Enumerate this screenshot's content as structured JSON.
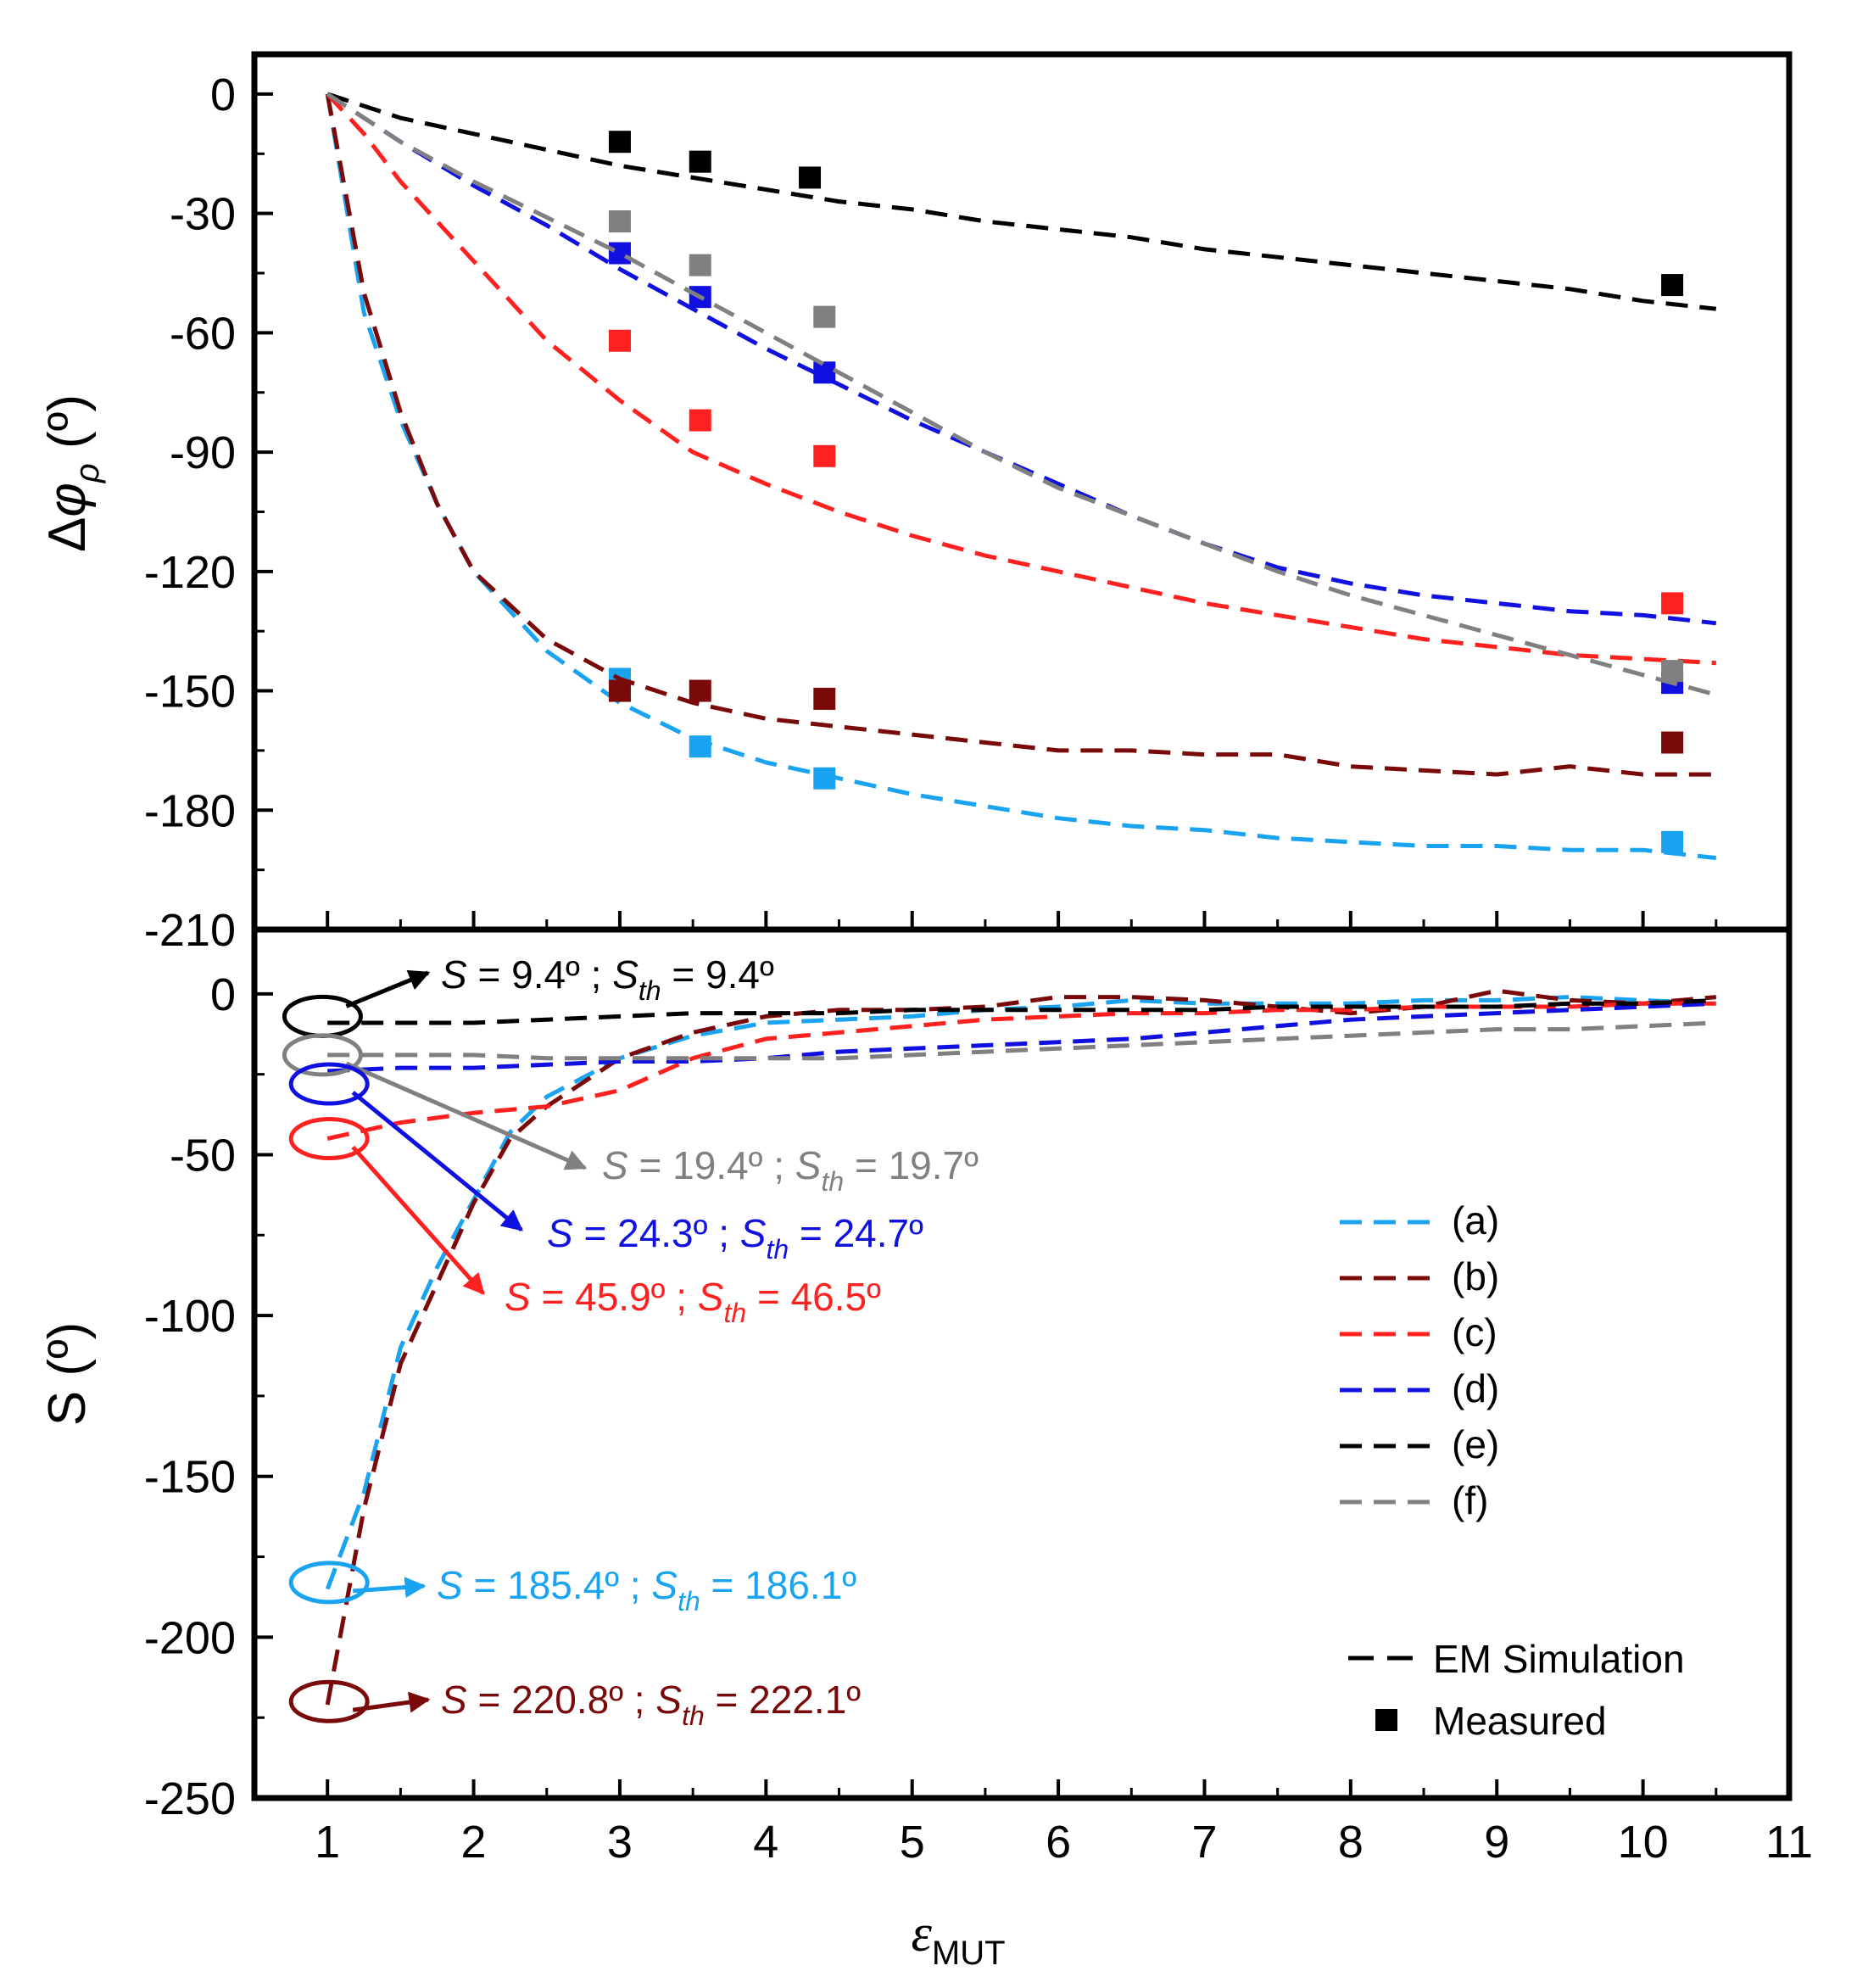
{
  "chart_data": [
    {
      "type": "line",
      "panel": "top",
      "ylabel": "Δφρ (º)",
      "ylabel_parts": {
        "delta": "Δ",
        "phi": "φ",
        "sub": "ρ",
        "unit": " (º)"
      },
      "ylim": [
        -210,
        10
      ],
      "yticks": [
        "0",
        "-30",
        "-60",
        "-90",
        "-120",
        "-150",
        "-180",
        "-210"
      ],
      "ytick_values": [
        0,
        -30,
        -60,
        -90,
        -120,
        -150,
        -180,
        -210
      ],
      "xlim": [
        0.5,
        11
      ],
      "series": [
        {
          "key": "a",
          "color": "#1aa3f0",
          "sim_x": [
            1,
            1.25,
            1.5,
            1.75,
            2,
            2.5,
            3,
            3.5,
            4,
            4.5,
            5,
            5.5,
            6,
            6.5,
            7,
            7.5,
            8,
            8.5,
            9,
            9.5,
            10,
            10.5
          ],
          "sim_y": [
            0,
            -55,
            -82,
            -103,
            -120,
            -140,
            -153,
            -162,
            -168,
            -172,
            -176,
            -179,
            -182,
            -184,
            -185,
            -187,
            -188,
            -189,
            -189,
            -190,
            -190,
            -192
          ],
          "measured_x": [
            3,
            3.55,
            4.4,
            10.2
          ],
          "measured_y": [
            -147,
            -164,
            -172,
            -188
          ]
        },
        {
          "key": "b",
          "color": "#7a0a0a",
          "sim_x": [
            1,
            1.25,
            1.5,
            1.75,
            2,
            2.5,
            3,
            3.5,
            4,
            4.5,
            5,
            5.5,
            6,
            6.5,
            7,
            7.5,
            8,
            8.5,
            9,
            9.5,
            10,
            10.5
          ],
          "sim_y": [
            0,
            -50,
            -80,
            -103,
            -120,
            -137,
            -147,
            -153,
            -157,
            -159,
            -161,
            -163,
            -165,
            -165,
            -166,
            -166,
            -169,
            -170,
            -171,
            -169,
            -171,
            -171
          ],
          "measured_x": [
            3,
            3.55,
            4.4,
            10.2
          ],
          "measured_y": [
            -150,
            -150,
            -152,
            -163
          ]
        },
        {
          "key": "c",
          "color": "#ff2020",
          "sim_x": [
            1,
            1.25,
            1.5,
            2,
            2.5,
            3,
            3.5,
            4,
            4.5,
            5,
            5.5,
            6,
            6.5,
            7,
            7.5,
            8,
            8.5,
            9,
            9.5,
            10,
            10.5
          ],
          "sim_y": [
            0,
            -10,
            -22,
            -42,
            -62,
            -77,
            -90,
            -98,
            -105,
            -111,
            -116,
            -120,
            -124,
            -128,
            -131,
            -134,
            -137,
            -139,
            -141,
            -142,
            -143
          ],
          "measured_x": [
            3,
            3.55,
            4.4,
            10.2
          ],
          "measured_y": [
            -62,
            -82,
            -91,
            -128
          ]
        },
        {
          "key": "d",
          "color": "#1010e0",
          "sim_x": [
            1,
            1.5,
            2,
            2.5,
            3,
            3.5,
            4,
            4.5,
            5,
            5.5,
            6,
            6.5,
            7,
            7.5,
            8,
            8.5,
            9,
            9.5,
            10,
            10.5
          ],
          "sim_y": [
            0,
            -12,
            -23,
            -33,
            -44,
            -54,
            -64,
            -73,
            -82,
            -90,
            -98,
            -106,
            -113,
            -119,
            -123,
            -126,
            -128,
            -130,
            -131,
            -133
          ],
          "measured_x": [
            3,
            3.55,
            4.4,
            10.2
          ],
          "measured_y": [
            -40,
            -51,
            -70,
            -148
          ]
        },
        {
          "key": "e",
          "color": "#000000",
          "sim_x": [
            1,
            1.5,
            2,
            2.5,
            3,
            3.5,
            4,
            4.5,
            5,
            5.5,
            6,
            6.5,
            7,
            7.5,
            8,
            8.5,
            9,
            9.5,
            10,
            10.5
          ],
          "sim_y": [
            0,
            -6,
            -10,
            -14,
            -18,
            -21,
            -24,
            -27,
            -29,
            -32,
            -34,
            -36,
            -39,
            -41,
            -43,
            -45,
            -47,
            -49,
            -52,
            -54
          ],
          "measured_x": [
            3,
            3.55,
            4.3,
            10.2
          ],
          "measured_y": [
            -12,
            -17,
            -21,
            -48
          ]
        },
        {
          "key": "f",
          "color": "#808080",
          "sim_x": [
            1,
            1.5,
            2,
            2.5,
            3,
            3.5,
            4,
            4.5,
            5,
            5.5,
            6,
            6.5,
            7,
            7.5,
            8,
            8.5,
            9,
            9.5,
            10,
            10.5
          ],
          "sim_y": [
            0,
            -12,
            -22,
            -31,
            -40,
            -50,
            -60,
            -70,
            -80,
            -90,
            -99,
            -106,
            -113,
            -120,
            -126,
            -131,
            -136,
            -141,
            -146,
            -151
          ],
          "measured_x": [
            3,
            3.55,
            4.4,
            10.2
          ],
          "measured_y": [
            -32,
            -43,
            -56,
            -145
          ]
        }
      ]
    },
    {
      "type": "line",
      "panel": "bottom",
      "ylabel": "S (º)",
      "xlabel": "εMUT",
      "xlabel_parts": {
        "main": "ε",
        "sub": "MUT"
      },
      "ylim": [
        -250,
        20
      ],
      "yticks": [
        "0",
        "-50",
        "-100",
        "-150",
        "-200",
        "-250"
      ],
      "ytick_values": [
        0,
        -50,
        -100,
        -150,
        -200,
        -250
      ],
      "xlim": [
        0.5,
        11
      ],
      "xticks": [
        "1",
        "2",
        "3",
        "4",
        "5",
        "6",
        "7",
        "8",
        "9",
        "10",
        "11"
      ],
      "xtick_values": [
        1,
        2,
        3,
        4,
        5,
        6,
        7,
        8,
        9,
        10,
        11
      ],
      "series": [
        {
          "key": "a",
          "label": "(a)",
          "color": "#1aa3f0",
          "x": [
            1,
            1.25,
            1.5,
            1.75,
            2,
            2.25,
            2.5,
            3,
            3.5,
            4,
            4.5,
            5,
            5.5,
            6,
            6.5,
            7,
            7.5,
            8,
            8.5,
            9,
            9.5,
            10,
            10.5
          ],
          "y": [
            -185,
            -155,
            -110,
            -85,
            -64,
            -43,
            -32,
            -20,
            -13,
            -9,
            -8,
            -7,
            -5,
            -4,
            -2,
            -3,
            -3,
            -3,
            -2,
            -2,
            -1,
            -2,
            -3
          ]
        },
        {
          "key": "b",
          "label": "(b)",
          "color": "#7a0a0a",
          "x": [
            1,
            1.25,
            1.5,
            1.75,
            2,
            2.25,
            2.5,
            3,
            3.5,
            4,
            4.5,
            5,
            5.5,
            6,
            6.5,
            7,
            7.5,
            8,
            8.5,
            9,
            9.5,
            10,
            10.5
          ],
          "y": [
            -221,
            -160,
            -115,
            -90,
            -65,
            -45,
            -35,
            -20,
            -12,
            -7,
            -5,
            -5,
            -4,
            -1,
            -1,
            -2,
            -4,
            -6,
            -4,
            1,
            -2,
            -3,
            -1
          ]
        },
        {
          "key": "c",
          "label": "(c)",
          "color": "#ff2020",
          "x": [
            1,
            1.5,
            2,
            2.5,
            3,
            3.5,
            4,
            4.5,
            5,
            5.5,
            6,
            6.5,
            7,
            7.5,
            8,
            8.5,
            9,
            9.5,
            10,
            10.5
          ],
          "y": [
            -45,
            -40,
            -37,
            -35,
            -30,
            -20,
            -14,
            -12,
            -10,
            -8,
            -7,
            -6,
            -6,
            -5,
            -5,
            -4,
            -4,
            -4,
            -3,
            -3
          ]
        },
        {
          "key": "d",
          "label": "(d)",
          "color": "#1010e0",
          "x": [
            1,
            1.5,
            2,
            2.5,
            3,
            3.5,
            4,
            4.5,
            5,
            5.5,
            6,
            6.5,
            7,
            7.5,
            8,
            8.5,
            9,
            9.5,
            10,
            10.5
          ],
          "y": [
            -24,
            -23,
            -23,
            -22,
            -21,
            -21,
            -20,
            -18,
            -17,
            -16,
            -15,
            -14,
            -12,
            -10,
            -8,
            -7,
            -6,
            -5,
            -4,
            -3
          ]
        },
        {
          "key": "e",
          "label": "(e)",
          "color": "#000000",
          "x": [
            1,
            1.5,
            2,
            2.5,
            3,
            3.5,
            4,
            4.5,
            5,
            5.5,
            6,
            6.5,
            7,
            7.5,
            8,
            8.5,
            9,
            9.5,
            10,
            10.5
          ],
          "y": [
            -9,
            -9,
            -9,
            -8,
            -7,
            -6,
            -6,
            -6,
            -5,
            -5,
            -5,
            -5,
            -5,
            -4,
            -4,
            -4,
            -4,
            -3,
            -3,
            -2
          ]
        },
        {
          "key": "f",
          "label": "(f)",
          "color": "#808080",
          "x": [
            1,
            1.5,
            2,
            2.5,
            3,
            3.5,
            4,
            4.5,
            5,
            5.5,
            6,
            6.5,
            7,
            7.5,
            8,
            8.5,
            9,
            9.5,
            10,
            10.5
          ],
          "y": [
            -19,
            -19,
            -19,
            -20,
            -20,
            -20,
            -20,
            -20,
            -19,
            -18,
            -17,
            -16,
            -15,
            -14,
            -13,
            -12,
            -11,
            -11,
            -10,
            -9
          ]
        }
      ],
      "annotations": [
        {
          "key": "e",
          "color": "#000000",
          "x": 1.1,
          "y": -7,
          "S": "9.4º",
          "Sth": "9.4º"
        },
        {
          "key": "f",
          "color": "#808080",
          "x": 1.1,
          "y": -19,
          "S": "19.4º",
          "Sth": "19.7º"
        },
        {
          "key": "d",
          "color": "#1010e0",
          "x": 1.0,
          "y": -28,
          "S": "24.3º",
          "Sth": "24.7º"
        },
        {
          "key": "c",
          "color": "#ff2020",
          "x": 1.0,
          "y": -45,
          "S": "45.9º",
          "Sth": "46.5º"
        },
        {
          "key": "a",
          "color": "#1aa3f0",
          "x": 1.0,
          "y": -183,
          "S": "185.4º",
          "Sth": "186.1º"
        },
        {
          "key": "b",
          "color": "#7a0a0a",
          "x": 1.0,
          "y": -220,
          "S": "220.8º",
          "Sth": "222.1º"
        }
      ],
      "annotation_parts": {
        "S": "S",
        "Sth_main": "S",
        "Sth_sub": "th",
        "eq": " = ",
        "sep": " ; "
      },
      "legend": {
        "position": "center-right",
        "entries": [
          "(a)",
          "(b)",
          "(c)",
          "(d)",
          "(e)",
          "(f)"
        ]
      },
      "legend2": {
        "position": "bottom-right",
        "sim_label": "EM Simulation",
        "meas_label": "Measured"
      }
    }
  ]
}
